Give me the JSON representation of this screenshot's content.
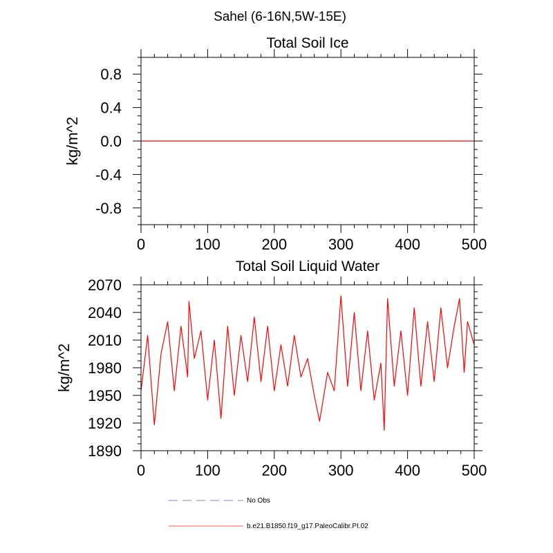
{
  "page_title": "Sahel (6-16N,5W-15E)",
  "chart_data": [
    {
      "type": "line",
      "title": "Total Soil Ice",
      "xlabel": "",
      "ylabel": "kg/m^2",
      "xlim": [
        0,
        500
      ],
      "ylim": [
        -1.0,
        1.0
      ],
      "xticks": [
        0,
        100,
        200,
        300,
        400,
        500
      ],
      "xtick_labels": [
        "0",
        "100",
        "200",
        "300",
        "400",
        "500"
      ],
      "yticks": [
        0.8,
        0.4,
        0.0,
        -0.4,
        -0.8
      ],
      "ytick_labels": [
        "0.8",
        "0.4",
        "0.0",
        "-0.4",
        "-0.8"
      ],
      "grid": false,
      "series": [
        {
          "name": "b.e21.B1850.f19_g17.PaleoCalibr.PI.02",
          "color": "#ff0000",
          "constant": 0.0,
          "n_points": 500
        }
      ]
    },
    {
      "type": "line",
      "title": "Total Soil Liquid Water",
      "xlabel": "",
      "ylabel": "kg/m^2",
      "xlim": [
        0,
        500
      ],
      "ylim": [
        1890,
        2070
      ],
      "xticks": [
        0,
        100,
        200,
        300,
        400,
        500
      ],
      "xtick_labels": [
        "0",
        "100",
        "200",
        "300",
        "400",
        "500"
      ],
      "yticks": [
        2070,
        2040,
        2010,
        1980,
        1950,
        1920,
        1890
      ],
      "ytick_labels": [
        "2070",
        "2040",
        "2010",
        "1980",
        "1950",
        "1920",
        "1890"
      ],
      "grid": false,
      "series": [
        {
          "name": "b.e21.B1850.f19_g17.PaleoCalibr.PI.02",
          "color": "#ff0000",
          "x": [
            0,
            10,
            20,
            30,
            40,
            50,
            60,
            70,
            72,
            80,
            90,
            100,
            110,
            120,
            130,
            140,
            150,
            160,
            170,
            180,
            190,
            200,
            210,
            220,
            230,
            240,
            250,
            260,
            268,
            280,
            290,
            300,
            310,
            320,
            330,
            340,
            350,
            360,
            365,
            370,
            380,
            390,
            400,
            410,
            420,
            430,
            440,
            450,
            460,
            470,
            478,
            485,
            490,
            500
          ],
          "values": [
            1955,
            2015,
            1918,
            1995,
            2030,
            1955,
            2025,
            1970,
            2052,
            1990,
            2020,
            1945,
            2010,
            1925,
            2025,
            1950,
            2015,
            1965,
            2035,
            1965,
            2025,
            1955,
            2005,
            1960,
            2015,
            1970,
            1990,
            1950,
            1922,
            1975,
            1955,
            2058,
            1960,
            2040,
            1955,
            2020,
            1945,
            1985,
            1912,
            2055,
            1960,
            2020,
            1950,
            2045,
            1960,
            2030,
            1965,
            2045,
            1980,
            2025,
            2055,
            1975,
            2030,
            2005
          ]
        }
      ]
    }
  ],
  "legend": {
    "placement": "bottom-center",
    "entries": [
      {
        "label": "No Obs",
        "color": "#8888ff",
        "style": "dashed"
      },
      {
        "label": "b.e21.B1850.f19_g17.PaleoCalibr.PI.02",
        "color": "#ff6666",
        "style": "solid"
      }
    ]
  }
}
